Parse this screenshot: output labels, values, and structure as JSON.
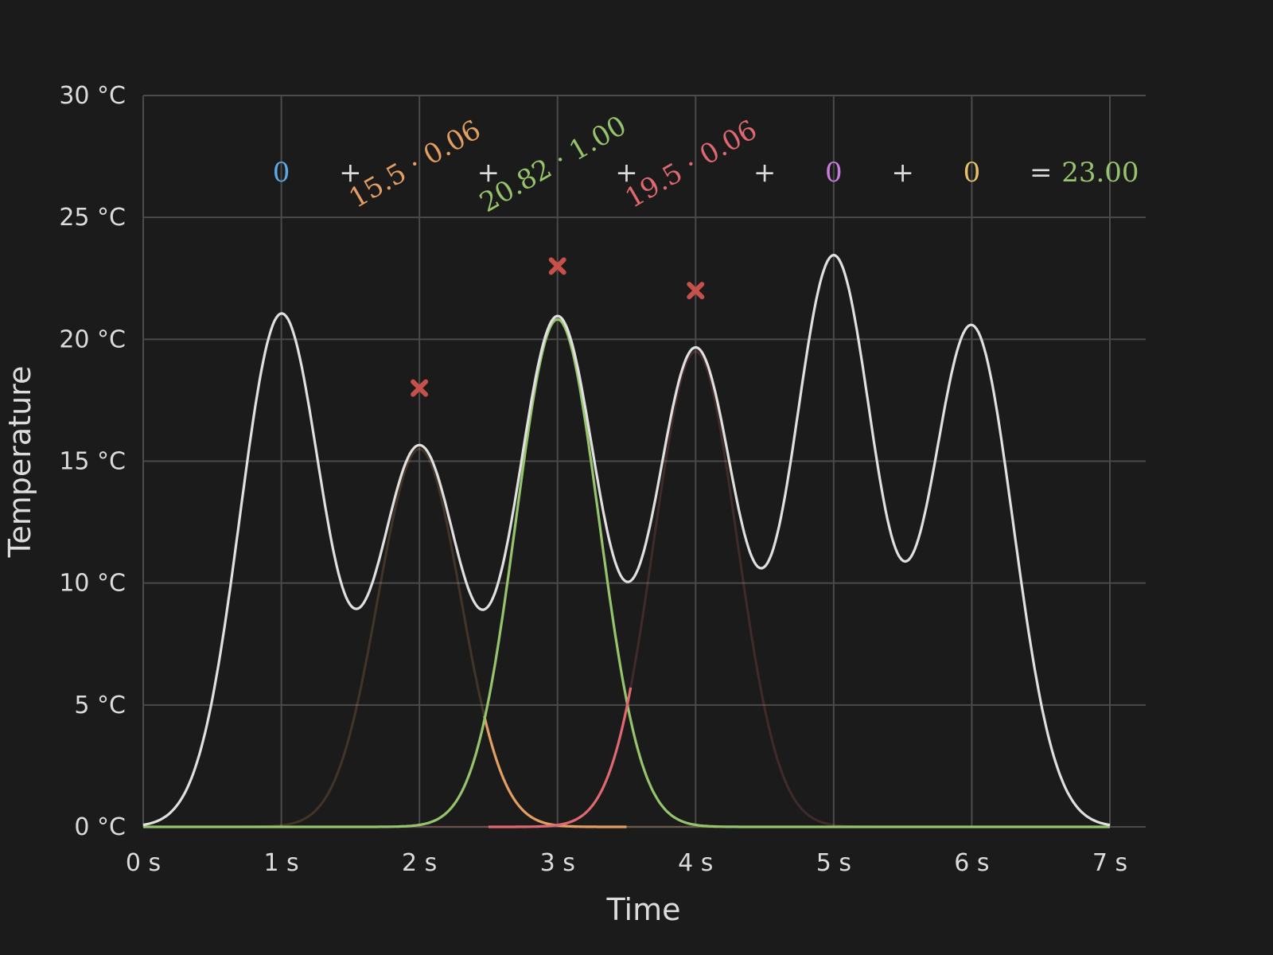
{
  "chart_data": {
    "type": "line",
    "xlabel": "Time",
    "ylabel": "Temperature",
    "xlim": [
      0,
      7
    ],
    "ylim": [
      0,
      30
    ],
    "grid": true,
    "x_ticks": [
      "0 s",
      "1 s",
      "2 s",
      "3 s",
      "4 s",
      "5 s",
      "6 s",
      "7 s"
    ],
    "y_ticks": [
      "0 °C",
      "5 °C",
      "10 °C",
      "15 °C",
      "20 °C",
      "25 °C",
      "30 °C"
    ],
    "kernel_sigma_s": 0.3,
    "samples": [
      {
        "t": 0,
        "value": 0,
        "weight": "0",
        "color": "#5aa9e6"
      },
      {
        "t": 1,
        "value": 21,
        "weight": null,
        "color": null
      },
      {
        "t": 2,
        "value": 15.5,
        "weight": "0.06",
        "color": "#e39e61"
      },
      {
        "t": 3,
        "value": 20.82,
        "weight": "1.00",
        "color": "#95c46c"
      },
      {
        "t": 4,
        "value": 19.5,
        "weight": "0.06",
        "color": "#e06870"
      },
      {
        "t": 5,
        "value": 23.3,
        "weight": "0",
        "color": "#c97ce0"
      },
      {
        "t": 6,
        "value": 20.5,
        "weight": "0",
        "color": "#e8c06c"
      },
      {
        "t": 7,
        "value": 0,
        "weight": null,
        "color": null
      }
    ],
    "series": [
      {
        "role": "sum",
        "color": "#e0e0e0"
      },
      {
        "role": "kernel",
        "t": 2,
        "color": "#e39e61",
        "highlight_range": [
          2.47,
          3.5
        ]
      },
      {
        "role": "kernel",
        "t": 3,
        "color": "#95c46c",
        "highlight_range": [
          0,
          7
        ]
      },
      {
        "role": "kernel",
        "t": 4,
        "color": "#e06870",
        "highlight_range": [
          2.5,
          3.53
        ]
      }
    ],
    "markers": [
      {
        "t": 2,
        "value": 18.0
      },
      {
        "t": 3,
        "value": 23.0
      },
      {
        "t": 4,
        "value": 22.0
      }
    ],
    "formula": {
      "terms": [
        {
          "text": "0",
          "color": "#5aa9e6",
          "t": 1
        },
        {
          "op": "+",
          "t": 1.5
        },
        {
          "text": "15.5 · 0.06",
          "color": "#e39e61",
          "t": 2,
          "rotated": true
        },
        {
          "op": "+",
          "t": 2.5
        },
        {
          "text": "20.82 · 1.00",
          "color": "#95c46c",
          "t": 3,
          "rotated": true
        },
        {
          "op": "+",
          "t": 3.5
        },
        {
          "text": "19.5 · 0.06",
          "color": "#e06870",
          "t": 4,
          "rotated": true
        },
        {
          "op": "+",
          "t": 4.5
        },
        {
          "text": "0",
          "color": "#c97ce0",
          "t": 5
        },
        {
          "op": "+",
          "t": 5.5
        },
        {
          "text": "0",
          "color": "#e8c06c",
          "t": 6
        }
      ],
      "result_op": "=",
      "result": "23.00",
      "result_color": "#95c46c",
      "op_color": "#dcdcdc"
    }
  }
}
